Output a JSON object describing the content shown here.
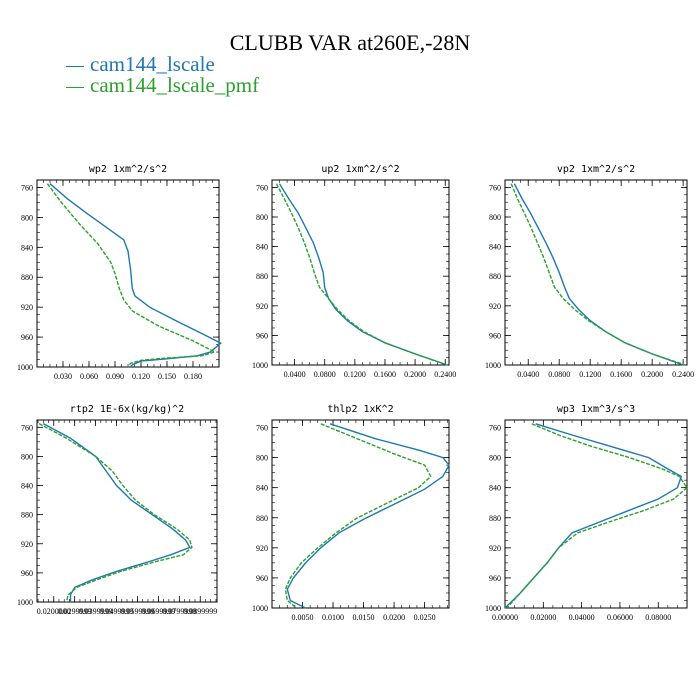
{
  "title": "CLUBB VAR at260E,-28N",
  "legend": [
    {
      "label": "cam144_lscale",
      "color": "#1f77b4"
    },
    {
      "label": "cam144_lscale_pmf",
      "color": "#2ca02c"
    }
  ],
  "chart_data": [
    {
      "type": "line",
      "title": "wp2  1xm^2/s^2",
      "xlim": [
        0,
        0.21
      ],
      "ylim": [
        1000,
        750
      ],
      "xticks": [
        "0.030",
        "0.060",
        "0.090",
        "0.120",
        "0.150",
        "0.180"
      ],
      "xtick_values": [
        0.03,
        0.06,
        0.09,
        0.12,
        0.15,
        0.18
      ],
      "yticks": [
        "760",
        "800",
        "840",
        "880",
        "920",
        "960",
        "1000"
      ],
      "ytick_values": [
        760,
        800,
        840,
        880,
        920,
        960,
        1000
      ],
      "series": [
        {
          "name": "cam144_lscale",
          "points": [
            [
              0.015,
              755
            ],
            [
              0.035,
              775
            ],
            [
              0.058,
              795
            ],
            [
              0.082,
              815
            ],
            [
              0.1,
              830
            ],
            [
              0.105,
              845
            ],
            [
              0.108,
              870
            ],
            [
              0.11,
              895
            ],
            [
              0.113,
              905
            ],
            [
              0.13,
              920
            ],
            [
              0.16,
              938
            ],
            [
              0.195,
              958
            ],
            [
              0.212,
              968
            ],
            [
              0.2,
              980
            ],
            [
              0.185,
              985
            ],
            [
              0.15,
              989
            ],
            [
              0.12,
              992
            ],
            [
              0.11,
              997
            ],
            [
              0.108,
              1000
            ]
          ]
        },
        {
          "name": "cam144_lscale_pmf",
          "points": [
            [
              0.012,
              755
            ],
            [
              0.028,
              780
            ],
            [
              0.05,
              810
            ],
            [
              0.07,
              835
            ],
            [
              0.085,
              860
            ],
            [
              0.09,
              875
            ],
            [
              0.095,
              895
            ],
            [
              0.1,
              910
            ],
            [
              0.11,
              925
            ],
            [
              0.14,
              945
            ],
            [
              0.18,
              965
            ],
            [
              0.205,
              980
            ],
            [
              0.19,
              985
            ],
            [
              0.15,
              988
            ],
            [
              0.12,
              991
            ],
            [
              0.108,
              995
            ],
            [
              0.105,
              1000
            ]
          ]
        }
      ]
    },
    {
      "type": "line",
      "title": "up2  1xm^2/s^2",
      "xlim": [
        0.01,
        0.245
      ],
      "ylim": [
        1000,
        750
      ],
      "xticks": [
        "0.0400",
        "0.0800",
        "0.1200",
        "0.1600",
        "0.2000",
        "0.2400"
      ],
      "xtick_values": [
        0.04,
        0.08,
        0.12,
        0.16,
        0.2,
        0.24
      ],
      "yticks": [
        "760",
        "800",
        "840",
        "880",
        "920",
        "960",
        "1000"
      ],
      "ytick_values": [
        760,
        800,
        840,
        880,
        920,
        960,
        1000
      ],
      "series": [
        {
          "name": "cam144_lscale",
          "points": [
            [
              0.02,
              755
            ],
            [
              0.032,
              775
            ],
            [
              0.045,
              795
            ],
            [
              0.055,
              815
            ],
            [
              0.065,
              835
            ],
            [
              0.072,
              855
            ],
            [
              0.078,
              875
            ],
            [
              0.08,
              895
            ],
            [
              0.085,
              910
            ],
            [
              0.095,
              925
            ],
            [
              0.11,
              940
            ],
            [
              0.13,
              955
            ],
            [
              0.16,
              970
            ],
            [
              0.2,
              985
            ],
            [
              0.243,
              1000
            ]
          ]
        },
        {
          "name": "cam144_lscale_pmf",
          "points": [
            [
              0.016,
              755
            ],
            [
              0.026,
              775
            ],
            [
              0.036,
              795
            ],
            [
              0.045,
              815
            ],
            [
              0.053,
              835
            ],
            [
              0.06,
              855
            ],
            [
              0.066,
              875
            ],
            [
              0.073,
              895
            ],
            [
              0.085,
              910
            ],
            [
              0.097,
              925
            ],
            [
              0.112,
              940
            ],
            [
              0.132,
              955
            ],
            [
              0.16,
              970
            ],
            [
              0.2,
              985
            ],
            [
              0.242,
              1000
            ]
          ]
        }
      ]
    },
    {
      "type": "line",
      "title": "vp2  1xm^2/s^2",
      "xlim": [
        0.01,
        0.245
      ],
      "ylim": [
        1000,
        750
      ],
      "xticks": [
        "0.0400",
        "0.0800",
        "0.1200",
        "0.1600",
        "0.2000",
        "0.2400"
      ],
      "xtick_values": [
        0.04,
        0.08,
        0.12,
        0.16,
        0.2,
        0.24
      ],
      "yticks": [
        "760",
        "800",
        "840",
        "880",
        "920",
        "960",
        "1000"
      ],
      "ytick_values": [
        760,
        800,
        840,
        880,
        920,
        960,
        1000
      ],
      "series": [
        {
          "name": "cam144_lscale",
          "points": [
            [
              0.022,
              755
            ],
            [
              0.032,
              775
            ],
            [
              0.043,
              795
            ],
            [
              0.053,
              815
            ],
            [
              0.063,
              835
            ],
            [
              0.072,
              855
            ],
            [
              0.08,
              875
            ],
            [
              0.087,
              895
            ],
            [
              0.093,
              910
            ],
            [
              0.105,
              925
            ],
            [
              0.12,
              940
            ],
            [
              0.14,
              955
            ],
            [
              0.165,
              970
            ],
            [
              0.2,
              985
            ],
            [
              0.24,
              1000
            ]
          ]
        },
        {
          "name": "cam144_lscale_pmf",
          "points": [
            [
              0.018,
              755
            ],
            [
              0.026,
              775
            ],
            [
              0.035,
              795
            ],
            [
              0.044,
              815
            ],
            [
              0.052,
              835
            ],
            [
              0.06,
              855
            ],
            [
              0.067,
              875
            ],
            [
              0.074,
              895
            ],
            [
              0.085,
              910
            ],
            [
              0.1,
              925
            ],
            [
              0.118,
              940
            ],
            [
              0.14,
              955
            ],
            [
              0.165,
              970
            ],
            [
              0.2,
              985
            ],
            [
              0.243,
              1000
            ]
          ]
        }
      ]
    },
    {
      "type": "line",
      "title": "rtp2  1E-6x(kg/kg)^2",
      "xlim": [
        0.012,
        0.098
      ],
      "ylim": [
        1000,
        750
      ],
      "xticks": [
        "0.0200000",
        "0.0299999",
        "0.0399999",
        "0.0499999",
        "0.0599999",
        "0.0699999",
        "0.0799999",
        "0.0899999"
      ],
      "xtick_values": [
        0.02,
        0.03,
        0.04,
        0.05,
        0.06,
        0.07,
        0.08,
        0.09
      ],
      "yticks": [
        "760",
        "800",
        "840",
        "880",
        "920",
        "960",
        "1000"
      ],
      "ytick_values": [
        760,
        800,
        840,
        880,
        920,
        960,
        1000
      ],
      "series": [
        {
          "name": "cam144_lscale",
          "points": [
            [
              0.015,
              755
            ],
            [
              0.028,
              775
            ],
            [
              0.04,
              800
            ],
            [
              0.045,
              820
            ],
            [
              0.05,
              840
            ],
            [
              0.057,
              860
            ],
            [
              0.067,
              880
            ],
            [
              0.077,
              900
            ],
            [
              0.083,
              915
            ],
            [
              0.085,
              925
            ],
            [
              0.076,
              935
            ],
            [
              0.065,
              945
            ],
            [
              0.05,
              958
            ],
            [
              0.038,
              970
            ],
            [
              0.03,
              980
            ],
            [
              0.028,
              990
            ],
            [
              0.028,
              1000
            ]
          ]
        },
        {
          "name": "cam144_lscale_pmf",
          "points": [
            [
              0.013,
              755
            ],
            [
              0.026,
              775
            ],
            [
              0.04,
              800
            ],
            [
              0.048,
              820
            ],
            [
              0.053,
              840
            ],
            [
              0.059,
              860
            ],
            [
              0.068,
              880
            ],
            [
              0.079,
              900
            ],
            [
              0.085,
              915
            ],
            [
              0.086,
              925
            ],
            [
              0.082,
              935
            ],
            [
              0.068,
              945
            ],
            [
              0.052,
              958
            ],
            [
              0.04,
              970
            ],
            [
              0.031,
              980
            ],
            [
              0.027,
              990
            ],
            [
              0.026,
              1000
            ]
          ]
        }
      ]
    },
    {
      "type": "line",
      "title": "thlp2  1xK^2",
      "xlim": [
        0,
        0.029
      ],
      "ylim": [
        1000,
        750
      ],
      "xticks": [
        "0.0050",
        "0.0100",
        "0.0150",
        "0.0200",
        "0.0250"
      ],
      "xtick_values": [
        0.005,
        0.01,
        0.015,
        0.02,
        0.025
      ],
      "yticks": [
        "760",
        "800",
        "840",
        "880",
        "920",
        "960",
        "1000"
      ],
      "ytick_values": [
        760,
        800,
        840,
        880,
        920,
        960,
        1000
      ],
      "series": [
        {
          "name": "cam144_lscale",
          "points": [
            [
              0.0095,
              755
            ],
            [
              0.017,
              775
            ],
            [
              0.024,
              790
            ],
            [
              0.028,
              800
            ],
            [
              0.029,
              810
            ],
            [
              0.028,
              825
            ],
            [
              0.025,
              842
            ],
            [
              0.02,
              862
            ],
            [
              0.015,
              882
            ],
            [
              0.011,
              900
            ],
            [
              0.008,
              920
            ],
            [
              0.0055,
              940
            ],
            [
              0.0035,
              960
            ],
            [
              0.0025,
              975
            ],
            [
              0.003,
              990
            ],
            [
              0.0055,
              1000
            ]
          ]
        },
        {
          "name": "cam144_lscale_pmf",
          "points": [
            [
              0.008,
              755
            ],
            [
              0.014,
              775
            ],
            [
              0.02,
              795
            ],
            [
              0.025,
              810
            ],
            [
              0.026,
              825
            ],
            [
              0.024,
              840
            ],
            [
              0.019,
              860
            ],
            [
              0.014,
              880
            ],
            [
              0.0105,
              900
            ],
            [
              0.0075,
              920
            ],
            [
              0.0048,
              940
            ],
            [
              0.003,
              960
            ],
            [
              0.0022,
              975
            ],
            [
              0.0025,
              990
            ],
            [
              0.004,
              1000
            ]
          ]
        }
      ]
    },
    {
      "type": "line",
      "title": "wp3  1xm^3/s^3",
      "xlim": [
        0,
        0.095
      ],
      "ylim": [
        1000,
        750
      ],
      "xticks": [
        "0.00000",
        "0.02000",
        "0.04000",
        "0.06000",
        "0.08000"
      ],
      "xtick_values": [
        0,
        0.02,
        0.04,
        0.06,
        0.08
      ],
      "yticks": [
        "760",
        "800",
        "840",
        "880",
        "920",
        "960",
        "1000"
      ],
      "ytick_values": [
        760,
        800,
        840,
        880,
        920,
        960,
        1000
      ],
      "series": [
        {
          "name": "cam144_lscale",
          "points": [
            [
              0.016,
              755
            ],
            [
              0.035,
              770
            ],
            [
              0.055,
              785
            ],
            [
              0.075,
              800
            ],
            [
              0.085,
              815
            ],
            [
              0.092,
              825
            ],
            [
              0.09,
              840
            ],
            [
              0.08,
              855
            ],
            [
              0.065,
              870
            ],
            [
              0.05,
              885
            ],
            [
              0.035,
              900
            ],
            [
              0.028,
              920
            ],
            [
              0.022,
              940
            ],
            [
              0.015,
              960
            ],
            [
              0.008,
              980
            ],
            [
              0,
              1000
            ]
          ]
        },
        {
          "name": "cam144_lscale_pmf",
          "points": [
            [
              0.014,
              755
            ],
            [
              0.028,
              770
            ],
            [
              0.045,
              785
            ],
            [
              0.065,
              800
            ],
            [
              0.082,
              815
            ],
            [
              0.091,
              825
            ],
            [
              0.095,
              840
            ],
            [
              0.088,
              855
            ],
            [
              0.073,
              870
            ],
            [
              0.055,
              885
            ],
            [
              0.038,
              900
            ],
            [
              0.028,
              920
            ],
            [
              0.022,
              940
            ],
            [
              0.015,
              960
            ],
            [
              0.008,
              980
            ],
            [
              0.001,
              1000
            ]
          ]
        }
      ]
    }
  ]
}
